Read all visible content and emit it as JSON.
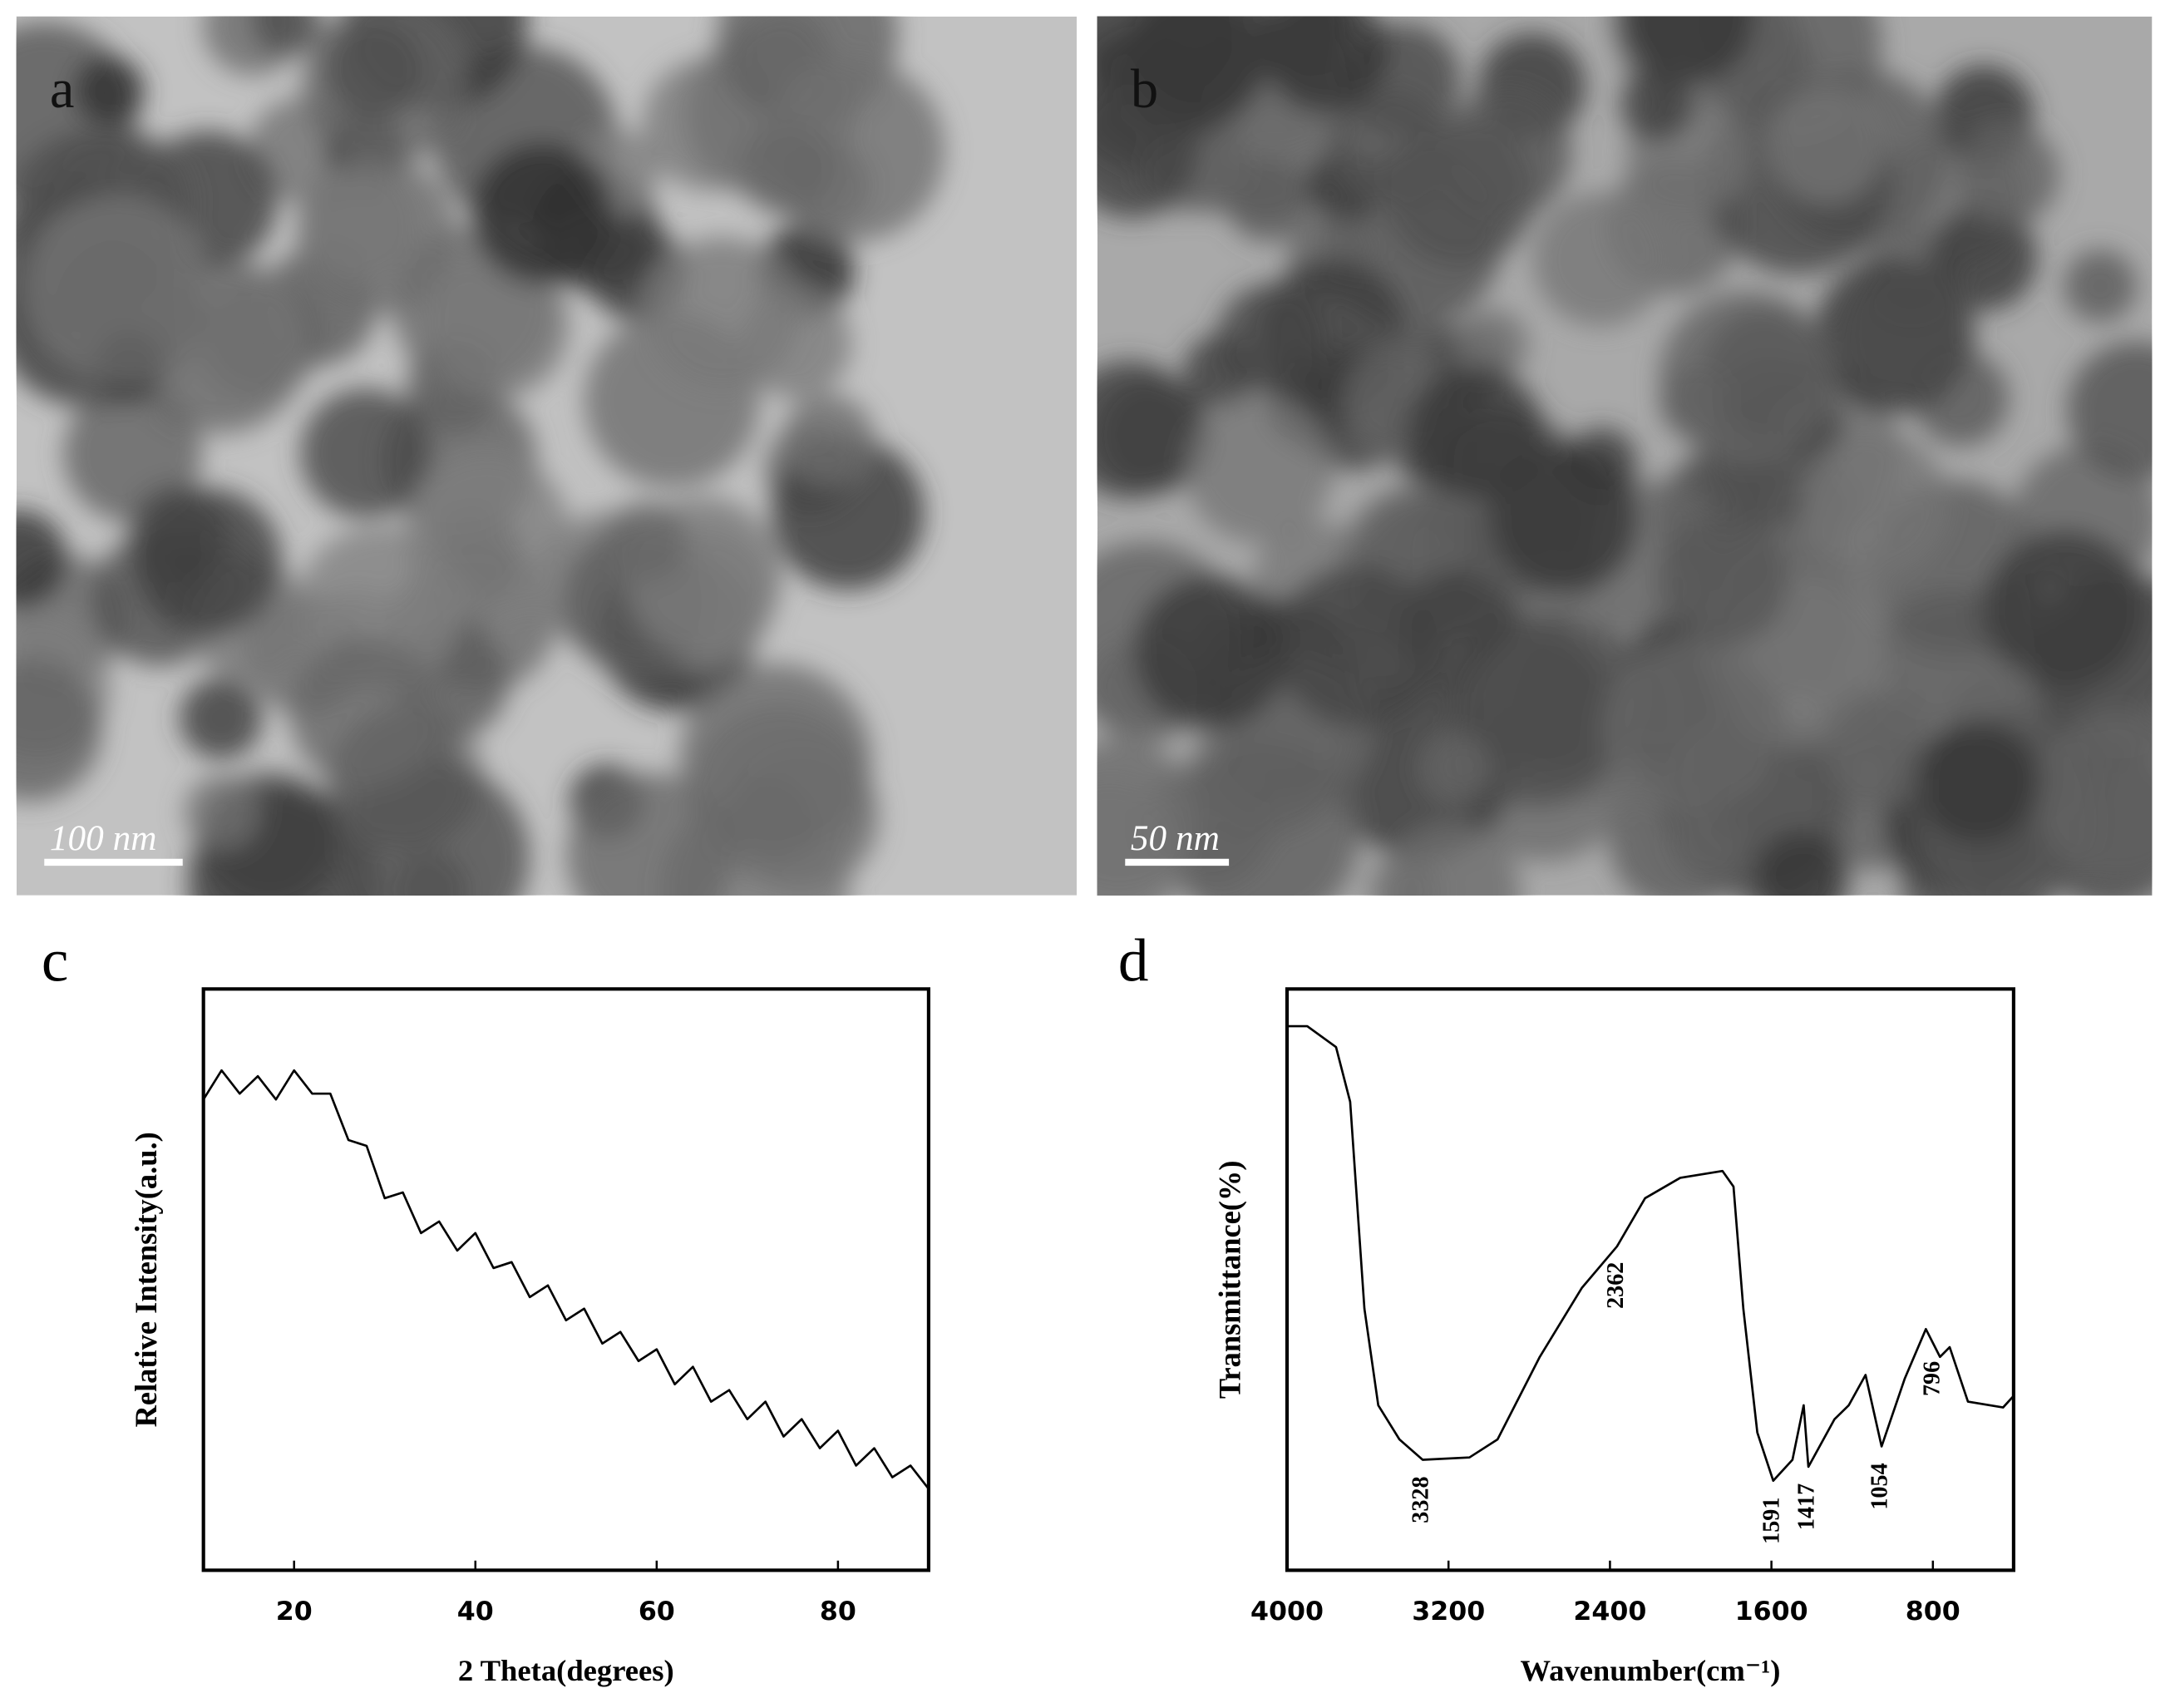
{
  "panels": [
    {
      "label": "a",
      "scale_bar": "100 nm"
    },
    {
      "label": "b",
      "scale_bar": "50 nm"
    }
  ],
  "chart_data": [
    {
      "type": "line",
      "panel_label": "c",
      "xlabel": "2 Theta(degrees)",
      "ylabel": "Relative Intensity(a.u.)",
      "x": [
        10,
        12,
        14,
        16,
        18,
        20,
        22,
        24,
        26,
        28,
        30,
        32,
        34,
        36,
        38,
        40,
        42,
        44,
        46,
        48,
        50,
        52,
        54,
        56,
        58,
        60,
        62,
        64,
        66,
        68,
        70,
        72,
        74,
        76,
        78,
        80,
        82,
        84,
        86,
        88,
        90
      ],
      "values": [
        81,
        86,
        82,
        85,
        81,
        86,
        82,
        82,
        74,
        73,
        64,
        65,
        58,
        60,
        55,
        58,
        52,
        53,
        47,
        49,
        43,
        45,
        39,
        41,
        36,
        38,
        32,
        35,
        29,
        31,
        26,
        29,
        23,
        26,
        21,
        24,
        18,
        21,
        16,
        18,
        14
      ],
      "xlim": [
        10,
        90
      ],
      "ylim": [
        0,
        100
      ],
      "xticks": [
        20,
        40,
        60,
        80
      ],
      "color": "#000000"
    },
    {
      "type": "line",
      "panel_label": "d",
      "xlabel": "Wavenumber(cm⁻¹)",
      "ylabel": "Transmittance(%)",
      "x": [
        4000,
        3900,
        3757,
        3687,
        3617,
        3548,
        3443,
        3328,
        3096,
        2957,
        2748,
        2539,
        2365,
        2226,
        2052,
        1843,
        1788,
        1739,
        1670,
        1591,
        1496,
        1440,
        1417,
        1287,
        1217,
        1134,
        1054,
        939,
        835,
        765,
        717,
        626,
        452,
        400
      ],
      "values": [
        93.6,
        93.6,
        90,
        80.6,
        45,
        28.4,
        22.5,
        19,
        19.4,
        22.5,
        36.7,
        48.6,
        55.7,
        64,
        67.5,
        68.7,
        66,
        45,
        23.7,
        15.4,
        19,
        28.4,
        17.8,
        26,
        28.4,
        33.6,
        21.3,
        33,
        41.5,
        36.7,
        38.4,
        29,
        28,
        30
      ],
      "xlim": [
        4000,
        400
      ],
      "ylim": [
        0,
        100
      ],
      "xticks": [
        4000,
        3200,
        2400,
        1600,
        800
      ],
      "color": "#000000",
      "peak_labels": [
        3328,
        2362,
        1591,
        1417,
        1054,
        796
      ]
    }
  ]
}
